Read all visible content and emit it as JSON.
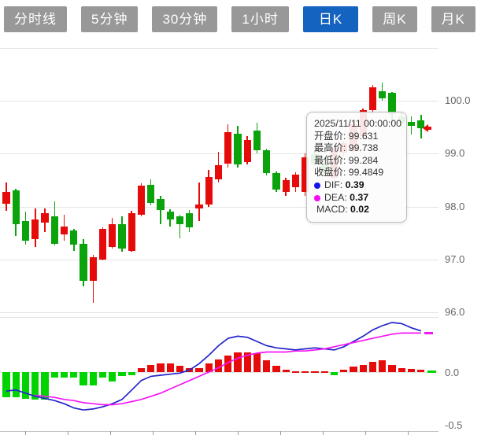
{
  "toolbar": {
    "tabs": [
      {
        "label": "分时线",
        "active": false
      },
      {
        "label": "5分钟",
        "active": false
      },
      {
        "label": "30分钟",
        "active": false
      },
      {
        "label": "1小时",
        "active": false
      },
      {
        "label": "日K",
        "active": true
      },
      {
        "label": "周K",
        "active": false
      },
      {
        "label": "月K",
        "active": false
      }
    ]
  },
  "colors": {
    "up": "#e60b0b",
    "down": "#0ba30b",
    "macd_up": "#e60b0b",
    "macd_down": "#00d400",
    "dif_line": "#2323cc",
    "dea_line": "#f516f5",
    "tab_bg": "#989898",
    "tab_active_bg": "#1463c0",
    "grid": "#e4e4e4",
    "axis_text": "#666666"
  },
  "price_axis": {
    "gridline_values": [
      101,
      100,
      99,
      98,
      97,
      96
    ],
    "tick_values": [
      100,
      99,
      98,
      97,
      96
    ],
    "tick_labels": [
      "100.0",
      "99.0",
      "98.0",
      "97.0",
      "96.0"
    ]
  },
  "macd_axis": {
    "tick_values": [
      0,
      -0.5
    ],
    "tick_labels": [
      "0.0",
      "-0.5"
    ]
  },
  "tooltip": {
    "timestamp": "2025/11/11 00:00:00",
    "open_label": "开盘价:",
    "open_value": "99.631",
    "high_label": "最高价:",
    "high_value": "99.738",
    "low_label": "最低价:",
    "low_value": "99.284",
    "close_label": "收盘价:",
    "close_value": "99.4849",
    "dif_label": "DIF:",
    "dif_value": "0.39",
    "dea_label": "DEA:",
    "dea_value": "0.37",
    "macd_label": "MACD:",
    "macd_value": "0.02"
  },
  "chart_data": {
    "type": "candlestick_with_macd",
    "hovered_date": "2025/11/11 00:00:00",
    "hovered_ohlc": {
      "open": 99.631,
      "high": 99.738,
      "low": 99.284,
      "close": 99.4849
    },
    "hovered_indicators": {
      "dif": 0.39,
      "dea": 0.37,
      "macd": 0.02
    },
    "price_ylim": [
      95.8,
      101.05
    ],
    "macd_ylim": [
      -0.56,
      0.52
    ],
    "grid": true,
    "candles": [
      [
        98.05,
        98.45,
        97.92,
        98.28
      ],
      [
        98.3,
        98.33,
        97.44,
        97.67
      ],
      [
        97.73,
        97.9,
        97.28,
        97.36
      ],
      [
        97.38,
        97.97,
        97.24,
        97.75
      ],
      [
        97.7,
        97.96,
        97.51,
        97.88
      ],
      [
        97.82,
        98.1,
        97.26,
        97.3
      ],
      [
        97.48,
        97.84,
        97.36,
        97.63
      ],
      [
        97.55,
        97.58,
        97.16,
        97.28
      ],
      [
        97.3,
        97.38,
        96.49,
        96.59
      ],
      [
        96.59,
        97.08,
        96.18,
        97.04
      ],
      [
        97.0,
        97.61,
        96.98,
        97.58
      ],
      [
        97.23,
        97.78,
        97.2,
        97.66
      ],
      [
        97.66,
        97.81,
        97.15,
        97.2
      ],
      [
        97.16,
        97.92,
        97.14,
        97.88
      ],
      [
        97.85,
        98.44,
        97.82,
        98.4
      ],
      [
        98.41,
        98.52,
        98.03,
        98.07
      ],
      [
        98.15,
        98.2,
        97.67,
        97.93
      ],
      [
        97.9,
        97.95,
        97.63,
        97.75
      ],
      [
        97.81,
        97.85,
        97.4,
        97.66
      ],
      [
        97.88,
        97.93,
        97.51,
        97.6
      ],
      [
        97.96,
        98.45,
        97.72,
        98.04
      ],
      [
        98.04,
        98.7,
        98.0,
        98.56
      ],
      [
        98.52,
        99.04,
        98.45,
        98.79
      ],
      [
        98.81,
        99.56,
        98.74,
        99.41
      ],
      [
        99.38,
        99.53,
        98.74,
        98.79
      ],
      [
        98.84,
        99.33,
        98.79,
        99.26
      ],
      [
        99.44,
        99.59,
        99.01,
        99.07
      ],
      [
        99.07,
        99.1,
        98.59,
        98.64
      ],
      [
        98.64,
        98.67,
        98.28,
        98.32
      ],
      [
        98.28,
        98.55,
        98.2,
        98.5
      ],
      [
        98.37,
        98.65,
        98.28,
        98.6
      ],
      [
        98.28,
        99.0,
        98.2,
        98.93
      ],
      [
        98.99,
        99.14,
        98.78,
        98.81
      ],
      [
        98.81,
        98.95,
        98.58,
        98.65
      ],
      [
        98.55,
        99.15,
        98.5,
        99.11
      ],
      [
        99.02,
        99.25,
        98.95,
        99.2
      ],
      [
        99.07,
        99.6,
        99.02,
        99.56
      ],
      [
        99.33,
        99.86,
        99.28,
        99.82
      ],
      [
        99.82,
        100.3,
        99.75,
        100.25
      ],
      [
        100.18,
        100.34,
        100.0,
        100.04
      ],
      [
        100.15,
        100.16,
        99.56,
        99.75
      ],
      [
        99.7,
        99.78,
        99.5,
        99.58
      ],
      [
        99.6,
        99.7,
        99.37,
        99.53
      ],
      [
        99.631,
        99.738,
        99.284,
        99.4849
      ]
    ],
    "dif": [
      -0.18,
      -0.17,
      -0.2,
      -0.23,
      -0.25,
      -0.27,
      -0.3,
      -0.34,
      -0.36,
      -0.35,
      -0.33,
      -0.3,
      -0.26,
      -0.17,
      -0.08,
      -0.04,
      -0.03,
      -0.02,
      -0.01,
      0.02,
      0.08,
      0.16,
      0.25,
      0.32,
      0.34,
      0.33,
      0.29,
      0.25,
      0.23,
      0.22,
      0.21,
      0.22,
      0.23,
      0.22,
      0.21,
      0.24,
      0.29,
      0.34,
      0.4,
      0.44,
      0.47,
      0.46,
      0.42,
      0.39
    ],
    "dea": [
      null,
      null,
      null,
      -0.22,
      -0.23,
      -0.24,
      -0.26,
      -0.27,
      -0.29,
      -0.3,
      -0.31,
      -0.31,
      -0.3,
      -0.28,
      -0.26,
      -0.23,
      -0.2,
      -0.16,
      -0.12,
      -0.08,
      -0.04,
      0.0,
      0.04,
      0.09,
      0.13,
      0.16,
      0.18,
      0.19,
      0.19,
      0.19,
      0.2,
      0.2,
      0.21,
      0.22,
      0.24,
      0.26,
      0.28,
      0.3,
      0.32,
      0.34,
      0.36,
      0.37,
      0.37,
      0.37
    ],
    "macd": [
      -0.24,
      -0.24,
      -0.25,
      -0.26,
      -0.26,
      -0.05,
      -0.05,
      -0.05,
      -0.13,
      -0.13,
      -0.05,
      -0.09,
      -0.04,
      -0.03,
      0.04,
      0.07,
      0.08,
      0.08,
      0.06,
      0.04,
      0.04,
      0.08,
      0.12,
      0.16,
      0.19,
      0.19,
      0.18,
      0.11,
      0.06,
      0.02,
      0.01,
      0.01,
      0.01,
      0.01,
      -0.03,
      0.02,
      0.05,
      0.07,
      0.1,
      0.11,
      0.07,
      0.04,
      0.03,
      0.02
    ]
  }
}
